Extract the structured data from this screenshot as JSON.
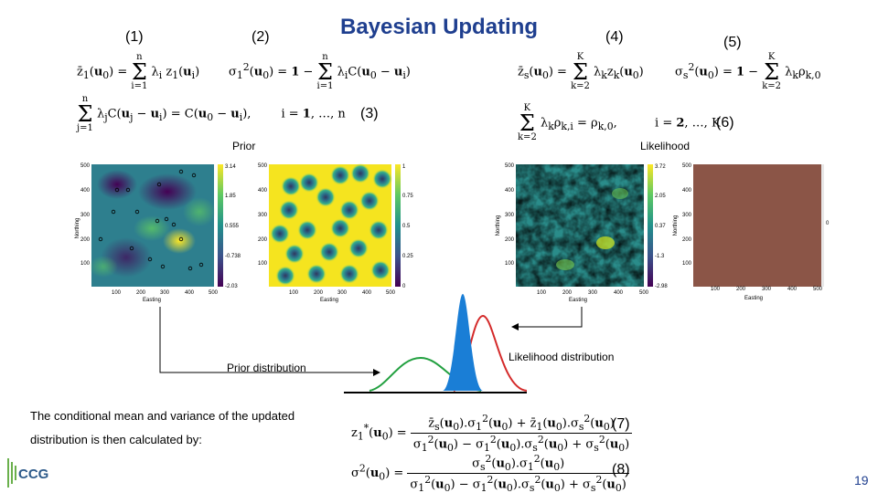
{
  "slide": {
    "title": "Bayesian Updating",
    "page_number": "19",
    "logo_text": "CCG",
    "eq_numbers": {
      "n1": "(1)",
      "n2": "(2)",
      "n3": "(3)",
      "n4": "(4)",
      "n5": "(5)",
      "n6": "(6)",
      "n7": "(7)",
      "n8": "(8)"
    },
    "labels": {
      "prior": "Prior",
      "likelihood": "Likelihood",
      "prior_distribution": "Prior distribution",
      "likelihood_distribution": "Likelihood distribution",
      "text_line1": "The conditional mean and variance of the updated",
      "text_line2": "distribution is then calculated by:"
    },
    "plots": {
      "axis_easting": "Easting",
      "axis_northing": "Northing",
      "ticks": [
        "100",
        "200",
        "300",
        "400",
        "500"
      ],
      "map1_colorbar": [
        "3.14",
        "1.85",
        "0.555",
        "-0.738",
        "-2.03"
      ],
      "map2_colorbar": [
        "1",
        "0.75",
        "0.5",
        "0.25",
        "0"
      ],
      "map3_colorbar": [
        "3.72",
        "2.05",
        "0.37",
        "-1.3",
        "-2.98"
      ],
      "map4_colorbar": [
        "0"
      ]
    },
    "colors": {
      "title": "#1f3f8f",
      "prior_curve": "#22a040",
      "likelihood_curve": "#d42a2a",
      "posterior_fill": "#1a7ed6",
      "likelihood_map": "#8b5547"
    }
  }
}
